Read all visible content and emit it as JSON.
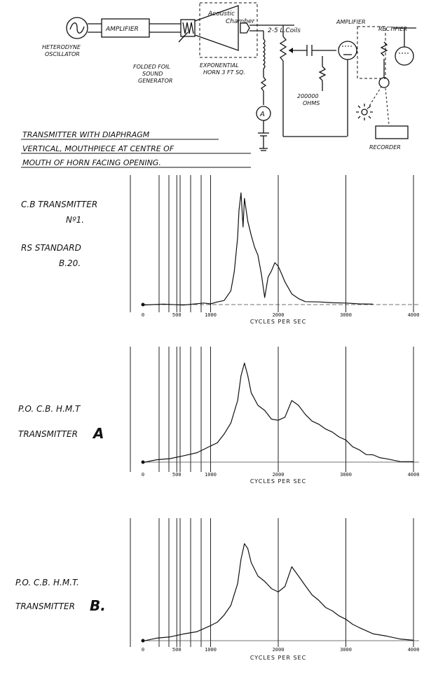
{
  "circuit": {
    "oscillator_label": [
      "HETERODYNE",
      "OSCILLATOR"
    ],
    "amplifier_label": "AMPLIFIER",
    "sound_generator_label": [
      "FOLDED FOIL",
      "SOUND",
      "GENERATOR"
    ],
    "horn_label": [
      "EXPONENTIAL",
      "HORN 3 FT SQ."
    ],
    "chamber_label": [
      "Acoustic",
      "Chamber"
    ],
    "coils_label": "2-5 L.Coils",
    "resistor_label": [
      "200000",
      "OHMS"
    ],
    "ammeter_label": "A",
    "amp_rect_label": [
      "AMPLIFIER",
      "RECTIFIER"
    ],
    "recorder_label": "RECORDER"
  },
  "caption": [
    "TRANSMITTER WITH DIAPHRAGM",
    "VERTICAL, MOUTHPIECE AT CENTRE OF",
    "MOUTH OF HORN FACING OPENING."
  ],
  "chart_data": [
    {
      "type": "line",
      "label_lines": [
        "C.B TRANSMITTER",
        "Nº1.",
        "RS STANDARD",
        "B.20."
      ],
      "xlabel": "CYCLES PER SEC",
      "x_ticks": [
        "0",
        "500",
        "1000",
        "2000",
        "3000",
        "4000"
      ],
      "x_range": [
        0,
        4000
      ],
      "x": [
        0,
        300,
        600,
        900,
        1000,
        1100,
        1200,
        1300,
        1350,
        1400,
        1420,
        1450,
        1480,
        1500,
        1550,
        1600,
        1650,
        1700,
        1750,
        1800,
        1850,
        1900,
        1950,
        2000,
        2050,
        2100,
        2200,
        2300,
        2400,
        2600,
        2800,
        3000,
        3200,
        3400
      ],
      "y": [
        0,
        0,
        0,
        1,
        1,
        2,
        4,
        12,
        30,
        60,
        85,
        100,
        70,
        95,
        75,
        62,
        52,
        44,
        28,
        6,
        25,
        30,
        38,
        34,
        28,
        20,
        10,
        5,
        3,
        2,
        2,
        1,
        1,
        0
      ],
      "ylim": [
        0,
        110
      ]
    },
    {
      "type": "line",
      "label_lines": [
        "P.O. C.B. H.M.T",
        "TRANSMITTER",
        "A"
      ],
      "xlabel": "CYCLES PER SEC",
      "x_ticks": [
        "0",
        "500",
        "1000",
        "2000",
        "3000",
        "4000"
      ],
      "x_range": [
        0,
        4000
      ],
      "x": [
        0,
        200,
        400,
        600,
        800,
        1000,
        1100,
        1200,
        1300,
        1400,
        1450,
        1500,
        1550,
        1600,
        1700,
        1800,
        1900,
        2000,
        2100,
        2200,
        2300,
        2400,
        2500,
        2600,
        2700,
        2800,
        2900,
        3000,
        3100,
        3200,
        3300,
        3400,
        3500,
        3600,
        3800,
        4000
      ],
      "y": [
        0,
        2,
        4,
        6,
        10,
        16,
        20,
        28,
        40,
        62,
        88,
        100,
        88,
        70,
        58,
        52,
        44,
        42,
        46,
        62,
        58,
        48,
        42,
        38,
        34,
        30,
        26,
        22,
        16,
        12,
        8,
        7,
        5,
        3,
        1,
        0
      ],
      "ylim": [
        0,
        110
      ]
    },
    {
      "type": "line",
      "label_lines": [
        "P.O. C.B. H.M.T.",
        "TRANSMITTER",
        "B."
      ],
      "xlabel": "CYCLES PER SEC",
      "x_ticks": [
        "0",
        "500",
        "1000",
        "2000",
        "3000",
        "4000"
      ],
      "x_range": [
        0,
        4000
      ],
      "x": [
        0,
        200,
        400,
        600,
        800,
        1000,
        1100,
        1200,
        1300,
        1400,
        1450,
        1500,
        1550,
        1600,
        1700,
        1800,
        1900,
        2000,
        2100,
        2200,
        2300,
        2400,
        2500,
        2600,
        2700,
        2800,
        2900,
        3000,
        3100,
        3200,
        3400,
        3600,
        3800,
        4000
      ],
      "y": [
        0,
        2,
        4,
        6,
        9,
        14,
        18,
        24,
        34,
        54,
        78,
        92,
        88,
        74,
        62,
        56,
        50,
        46,
        52,
        70,
        62,
        52,
        44,
        38,
        32,
        28,
        24,
        20,
        16,
        12,
        7,
        4,
        2,
        0
      ],
      "ylim": [
        0,
        110
      ]
    }
  ]
}
